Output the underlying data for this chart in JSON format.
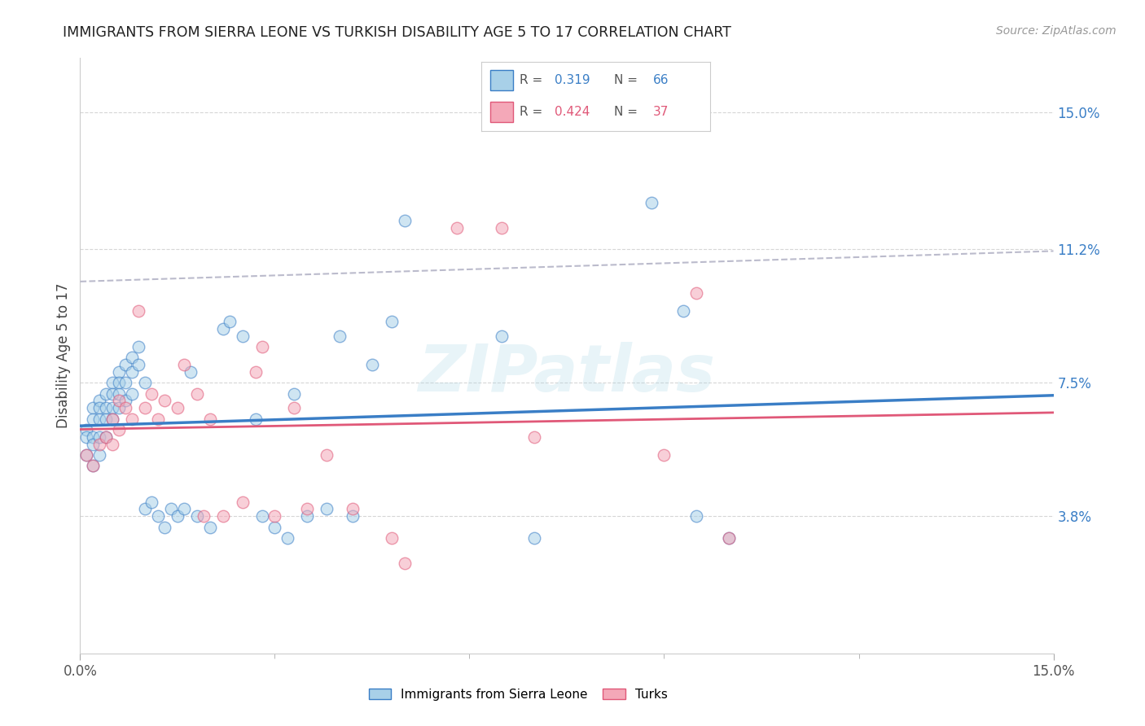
{
  "title": "IMMIGRANTS FROM SIERRA LEONE VS TURKISH DISABILITY AGE 5 TO 17 CORRELATION CHART",
  "source": "Source: ZipAtlas.com",
  "ylabel": "Disability Age 5 to 17",
  "y_tick_labels_right": [
    "15.0%",
    "11.2%",
    "7.5%",
    "3.8%"
  ],
  "y_tick_values_right": [
    0.15,
    0.112,
    0.075,
    0.038
  ],
  "xlim": [
    0.0,
    0.15
  ],
  "ylim": [
    0.0,
    0.165
  ],
  "color_blue": "#A8D0E8",
  "color_pink": "#F4A8B8",
  "line_blue": "#3A7EC6",
  "line_pink": "#E05878",
  "line_dashed_color": "#BBBBCC",
  "background_color": "#FFFFFF",
  "grid_color": "#CCCCCC",
  "sierra_leone_x": [
    0.001,
    0.001,
    0.001,
    0.002,
    0.002,
    0.002,
    0.002,
    0.002,
    0.003,
    0.003,
    0.003,
    0.003,
    0.003,
    0.004,
    0.004,
    0.004,
    0.004,
    0.005,
    0.005,
    0.005,
    0.005,
    0.006,
    0.006,
    0.006,
    0.006,
    0.007,
    0.007,
    0.007,
    0.008,
    0.008,
    0.008,
    0.009,
    0.009,
    0.01,
    0.01,
    0.011,
    0.012,
    0.013,
    0.014,
    0.015,
    0.016,
    0.017,
    0.018,
    0.02,
    0.022,
    0.023,
    0.025,
    0.027,
    0.028,
    0.03,
    0.032,
    0.033,
    0.035,
    0.038,
    0.04,
    0.042,
    0.045,
    0.048,
    0.05,
    0.065,
    0.07,
    0.088,
    0.093,
    0.095,
    0.1
  ],
  "sierra_leone_y": [
    0.062,
    0.06,
    0.055,
    0.068,
    0.065,
    0.06,
    0.058,
    0.052,
    0.07,
    0.068,
    0.065,
    0.06,
    0.055,
    0.072,
    0.068,
    0.065,
    0.06,
    0.075,
    0.072,
    0.068,
    0.065,
    0.078,
    0.075,
    0.072,
    0.068,
    0.08,
    0.075,
    0.07,
    0.082,
    0.078,
    0.072,
    0.085,
    0.08,
    0.075,
    0.04,
    0.042,
    0.038,
    0.035,
    0.04,
    0.038,
    0.04,
    0.078,
    0.038,
    0.035,
    0.09,
    0.092,
    0.088,
    0.065,
    0.038,
    0.035,
    0.032,
    0.072,
    0.038,
    0.04,
    0.088,
    0.038,
    0.08,
    0.092,
    0.12,
    0.088,
    0.032,
    0.125,
    0.095,
    0.038,
    0.032
  ],
  "turks_x": [
    0.001,
    0.002,
    0.003,
    0.004,
    0.005,
    0.005,
    0.006,
    0.006,
    0.007,
    0.008,
    0.009,
    0.01,
    0.011,
    0.012,
    0.013,
    0.015,
    0.016,
    0.018,
    0.019,
    0.02,
    0.022,
    0.025,
    0.027,
    0.028,
    0.03,
    0.033,
    0.035,
    0.038,
    0.042,
    0.048,
    0.05,
    0.058,
    0.065,
    0.07,
    0.09,
    0.095,
    0.1
  ],
  "turks_y": [
    0.055,
    0.052,
    0.058,
    0.06,
    0.058,
    0.065,
    0.062,
    0.07,
    0.068,
    0.065,
    0.095,
    0.068,
    0.072,
    0.065,
    0.07,
    0.068,
    0.08,
    0.072,
    0.038,
    0.065,
    0.038,
    0.042,
    0.078,
    0.085,
    0.038,
    0.068,
    0.04,
    0.055,
    0.04,
    0.032,
    0.025,
    0.118,
    0.118,
    0.06,
    0.055,
    0.1,
    0.032
  ]
}
